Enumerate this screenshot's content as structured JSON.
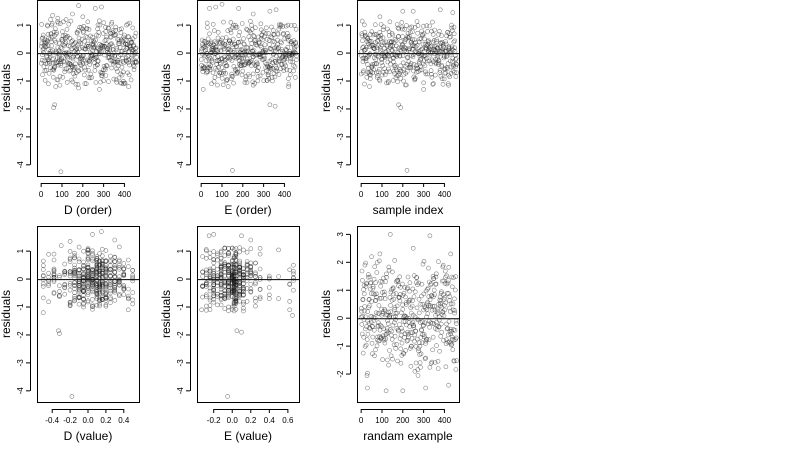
{
  "chart_data": [
    {
      "type": "scatter",
      "xlabel": "D (order)",
      "ylabel": "residuals",
      "xlim": [
        -20,
        470
      ],
      "ylim": [
        -4.4,
        1.9
      ],
      "xticks": [
        0,
        100,
        200,
        300,
        400
      ],
      "xtick_labels": [
        "0",
        "100",
        "200",
        "300",
        "400"
      ],
      "yticks": [
        -4,
        -3,
        -2,
        -1,
        0,
        1
      ],
      "ytick_labels": [
        "-4",
        "-3",
        "-2",
        "-1",
        "0",
        "1"
      ],
      "hline": 0,
      "x_kind": "order",
      "n_points": 460,
      "points": [
        [
          30,
          1.0
        ],
        [
          45,
          1.2
        ],
        [
          55,
          1.35
        ],
        [
          80,
          1.25
        ],
        [
          150,
          1.4
        ],
        [
          180,
          1.7
        ],
        [
          260,
          1.6
        ],
        [
          290,
          1.65
        ],
        [
          120,
          1.2
        ],
        [
          200,
          1.3
        ],
        [
          340,
          1.1
        ],
        [
          410,
          1.0
        ],
        [
          440,
          0.9
        ],
        [
          35,
          -1.1
        ],
        [
          70,
          -1.2
        ],
        [
          65,
          -1.85
        ],
        [
          60,
          -1.95
        ],
        [
          90,
          -1.15
        ],
        [
          180,
          -1.25
        ],
        [
          280,
          -1.3
        ],
        [
          395,
          -1.1
        ],
        [
          420,
          -1.2
        ],
        [
          95,
          -4.25
        ]
      ],
      "noise_sd": 0.55
    },
    {
      "type": "scatter",
      "xlabel": "E (order)",
      "ylabel": "residuals",
      "xlim": [
        -20,
        470
      ],
      "ylim": [
        -4.4,
        1.9
      ],
      "xticks": [
        0,
        100,
        200,
        300,
        400
      ],
      "xtick_labels": [
        "0",
        "100",
        "200",
        "300",
        "400"
      ],
      "yticks": [
        -4,
        -3,
        -2,
        -1,
        0,
        1
      ],
      "ytick_labels": [
        "-4",
        "-3",
        "-2",
        "-1",
        "0",
        "1"
      ],
      "hline": 0,
      "x_kind": "order",
      "n_points": 460,
      "points": [
        [
          40,
          1.6
        ],
        [
          70,
          1.65
        ],
        [
          100,
          1.75
        ],
        [
          180,
          1.6
        ],
        [
          330,
          1.5
        ],
        [
          360,
          1.55
        ],
        [
          250,
          1.4
        ],
        [
          10,
          -1.3
        ],
        [
          50,
          -1.1
        ],
        [
          130,
          -1.2
        ],
        [
          250,
          -1.15
        ],
        [
          330,
          -1.85
        ],
        [
          355,
          -1.9
        ],
        [
          420,
          -1.2
        ],
        [
          150,
          -4.2
        ]
      ],
      "noise_sd": 0.55
    },
    {
      "type": "scatter",
      "xlabel": "sample index",
      "ylabel": "residuals",
      "xlim": [
        -20,
        470
      ],
      "ylim": [
        -4.4,
        1.9
      ],
      "xticks": [
        0,
        100,
        200,
        300,
        400
      ],
      "xtick_labels": [
        "0",
        "100",
        "200",
        "300",
        "400"
      ],
      "yticks": [
        -4,
        -3,
        -2,
        -1,
        0,
        1
      ],
      "ytick_labels": [
        "-4",
        "-3",
        "-2",
        "-1",
        "0",
        "1"
      ],
      "hline": 0,
      "x_kind": "order",
      "n_points": 460,
      "points": [
        [
          200,
          1.5
        ],
        [
          250,
          1.5
        ],
        [
          380,
          1.55
        ],
        [
          440,
          1.45
        ],
        [
          90,
          1.3
        ],
        [
          180,
          -1.85
        ],
        [
          190,
          -1.95
        ],
        [
          40,
          -1.2
        ],
        [
          300,
          -1.3
        ],
        [
          420,
          -1.15
        ],
        [
          220,
          -4.2
        ]
      ],
      "noise_sd": 0.55
    },
    {
      "type": "scatter",
      "xlabel": "D (value)",
      "ylabel": "residuals",
      "xlim": [
        -0.57,
        0.57
      ],
      "ylim": [
        -4.4,
        1.9
      ],
      "xticks": [
        -0.4,
        -0.2,
        0.0,
        0.2,
        0.4
      ],
      "xtick_labels": [
        "-0.4",
        "-0.2",
        "0.0",
        "0.2",
        "0.4"
      ],
      "yticks": [
        -4,
        -3,
        -2,
        -1,
        0,
        1
      ],
      "ytick_labels": [
        "-4",
        "-3",
        "-2",
        "-1",
        "0",
        "1"
      ],
      "hline": 0,
      "x_kind": "value_D",
      "n_points": 460,
      "points": [
        [
          -0.3,
          1.2
        ],
        [
          -0.2,
          1.35
        ],
        [
          0.05,
          1.6
        ],
        [
          0.15,
          1.7
        ],
        [
          0.3,
          1.4
        ],
        [
          -0.32,
          -1.95
        ],
        [
          -0.33,
          -1.85
        ],
        [
          -0.5,
          -1.2
        ],
        [
          0.45,
          -1.1
        ],
        [
          -0.18,
          -4.2
        ]
      ],
      "noise_sd": 0.55
    },
    {
      "type": "scatter",
      "xlabel": "E (value)",
      "ylabel": "residuals",
      "xlim": [
        -0.38,
        0.72
      ],
      "ylim": [
        -4.4,
        1.9
      ],
      "xticks": [
        -0.2,
        0.0,
        0.2,
        0.4,
        0.6
      ],
      "xtick_labels": [
        "-0.2",
        "0.0",
        "0.2",
        "0.4",
        "0.6"
      ],
      "yticks": [
        -4,
        -3,
        -2,
        -1,
        0,
        1
      ],
      "ytick_labels": [
        "-4",
        "-3",
        "-2",
        "-1",
        "0",
        "1"
      ],
      "hline": 0,
      "x_kind": "value_E",
      "n_points": 460,
      "points": [
        [
          -0.25,
          1.55
        ],
        [
          -0.2,
          1.6
        ],
        [
          0.1,
          1.55
        ],
        [
          0.2,
          1.4
        ],
        [
          0.05,
          -1.85
        ],
        [
          0.1,
          -1.9
        ],
        [
          0.62,
          -1.1
        ],
        [
          0.65,
          -1.3
        ],
        [
          -0.33,
          -1.1
        ],
        [
          -0.05,
          -4.2
        ]
      ],
      "noise_sd": 0.55
    },
    {
      "type": "scatter",
      "xlabel": "randam example",
      "ylabel": "residuals",
      "xlim": [
        -20,
        470
      ],
      "ylim": [
        -3.0,
        3.3
      ],
      "xticks": [
        0,
        100,
        200,
        300,
        400
      ],
      "xtick_labels": [
        "0",
        "100",
        "200",
        "300",
        "400"
      ],
      "yticks": [
        -2,
        -1,
        0,
        1,
        2,
        3
      ],
      "ytick_labels": [
        "-2",
        "-1",
        "0",
        "1",
        "2",
        "3"
      ],
      "hline": 0,
      "x_kind": "order",
      "n_points": 460,
      "points": [
        [
          140,
          3.0
        ],
        [
          330,
          2.95
        ],
        [
          250,
          2.5
        ],
        [
          50,
          2.2
        ],
        [
          90,
          2.3
        ],
        [
          430,
          2.3
        ],
        [
          200,
          -2.6
        ],
        [
          120,
          -2.6
        ],
        [
          310,
          -2.5
        ],
        [
          30,
          -2.5
        ],
        [
          420,
          -2.4
        ]
      ],
      "noise_sd": 1.0
    }
  ]
}
